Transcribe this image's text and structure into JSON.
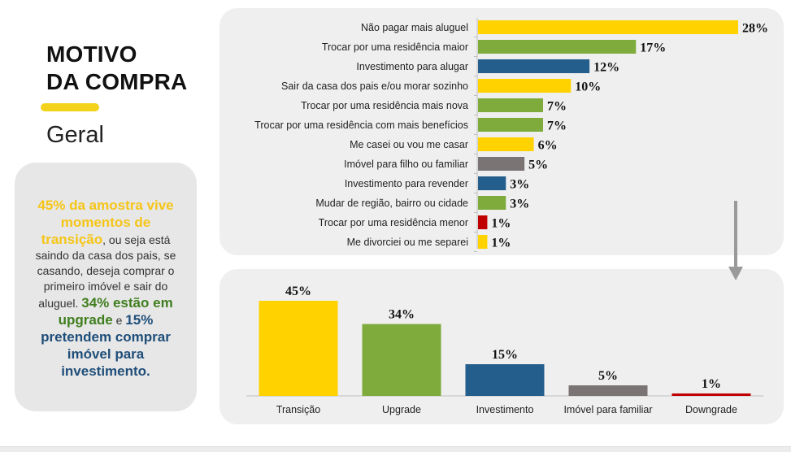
{
  "heading": {
    "title_line1": "MOTIVO",
    "title_line2": "DA COMPRA",
    "subtitle": "Geral"
  },
  "note": {
    "part1": "45% da amostra vive momentos de transição",
    "part2": ", ou seja está saindo da casa dos pais, se casando, deseja comprar o primeiro imóvel e sair do aluguel. ",
    "part3": "34% estão em upgrade",
    "part4": " e ",
    "part5": "15% pretendem comprar imóvel para investimento."
  },
  "colors": {
    "yellow": "#FFD200",
    "green": "#7EAB3C",
    "blue": "#245E8C",
    "gray": "#7A7475",
    "red": "#C00000"
  },
  "chart_data": [
    {
      "type": "bar",
      "orientation": "horizontal",
      "categories": [
        "Não pagar mais aluguel",
        "Trocar por uma residência maior",
        "Investimento para alugar",
        "Sair da casa dos pais e/ou morar sozinho",
        "Trocar por uma residência mais nova",
        "Trocar por uma residência com mais benefícios",
        "Me casei ou vou me casar",
        "Imóvel para filho ou familiar",
        "Investimento para revender",
        "Mudar de região, bairro ou cidade",
        "Trocar por uma residência menor",
        "Me divorciei ou me separei"
      ],
      "values": [
        28,
        17,
        12,
        10,
        7,
        7,
        6,
        5,
        3,
        3,
        1,
        1
      ],
      "labels": [
        "28%",
        "17%",
        "12%",
        "10%",
        "7%",
        "7%",
        "6%",
        "5%",
        "3%",
        "3%",
        "1%",
        "1%"
      ],
      "bar_colors": [
        "yellow",
        "green",
        "blue",
        "yellow",
        "green",
        "green",
        "yellow",
        "gray",
        "blue",
        "green",
        "red",
        "yellow"
      ],
      "xlim": [
        0,
        28
      ]
    },
    {
      "type": "bar",
      "orientation": "vertical",
      "categories": [
        "Transição",
        "Upgrade",
        "Investimento",
        "Imóvel para familiar",
        "Downgrade"
      ],
      "values": [
        45,
        34,
        15,
        5,
        1
      ],
      "labels": [
        "45%",
        "34%",
        "15%",
        "5%",
        "1%"
      ],
      "bar_colors": [
        "yellow",
        "green",
        "blue",
        "gray",
        "red"
      ],
      "ylim": [
        0,
        45
      ]
    }
  ]
}
